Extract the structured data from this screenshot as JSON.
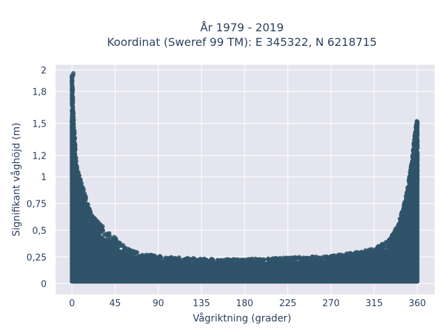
{
  "chart_data": {
    "type": "scatter",
    "title_line1": "År 1979 - 2019",
    "title_line2": "Koordinat (Sweref 99 TM): E 345322, N 6218715",
    "xlabel": "Vågriktning (grader)",
    "ylabel": "Signifikant våghöjd (m)",
    "xlim": [
      -17,
      378
    ],
    "ylim": [
      -0.1,
      2.05
    ],
    "x_ticks": [
      0,
      45,
      90,
      135,
      180,
      225,
      270,
      315,
      360
    ],
    "y_ticks": [
      0,
      0.25,
      0.5,
      0.75,
      1,
      1.2,
      1.5,
      1.8,
      2
    ],
    "y_tick_labels": [
      "0",
      "0,25",
      "0,5",
      "0,75",
      "1",
      "1,2",
      "1,5",
      "1,8",
      "2"
    ],
    "grid": true,
    "point_color": "#2f5368",
    "background_color": "#e5e5ef",
    "envelope": {
      "x": [
        0,
        2,
        5,
        10,
        15,
        20,
        30,
        40,
        50,
        60,
        75,
        90,
        120,
        150,
        180,
        210,
        240,
        270,
        300,
        315,
        330,
        340,
        345,
        350,
        355,
        358,
        360
      ],
      "y_max": [
        1.97,
        1.5,
        1.1,
        0.95,
        0.8,
        0.65,
        0.55,
        0.48,
        0.38,
        0.32,
        0.28,
        0.26,
        0.24,
        0.23,
        0.23,
        0.24,
        0.25,
        0.26,
        0.3,
        0.33,
        0.4,
        0.55,
        0.7,
        0.9,
        1.2,
        1.45,
        1.52
      ]
    }
  }
}
